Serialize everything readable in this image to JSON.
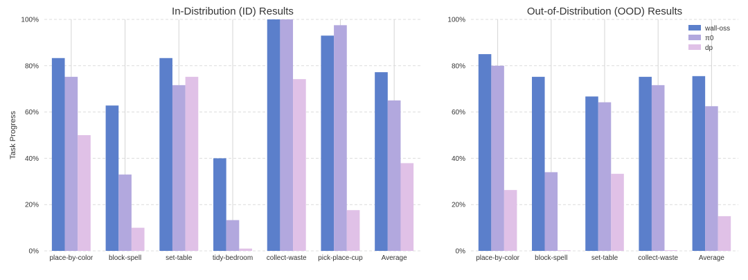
{
  "chart_data": [
    {
      "type": "bar",
      "title": "In-Distribution (ID) Results",
      "xlabel": "",
      "ylabel": "Task Progress",
      "ylim": [
        0,
        100
      ],
      "ytick_format": "percent",
      "yticks": [
        "0%",
        "20%",
        "40%",
        "60%",
        "80%",
        "100%"
      ],
      "grid": true,
      "categories": [
        "place-by-color",
        "block-spell",
        "set-table",
        "tidy-bedroom",
        "collect-waste",
        "pick-place-cup",
        "Average"
      ],
      "series": [
        {
          "name": "wall-oss",
          "color": "#5b7fcb",
          "values": [
            83.3,
            62.8,
            83.3,
            40.0,
            100.0,
            93.0,
            77.2
          ]
        },
        {
          "name": "π0",
          "color": "#b2a8de",
          "values": [
            75.2,
            33.0,
            71.6,
            13.3,
            100.0,
            97.5,
            65.0
          ]
        },
        {
          "name": "dp",
          "color": "#e0c1e7",
          "values": [
            50.0,
            10.0,
            75.2,
            1.0,
            74.2,
            17.6,
            37.9
          ]
        }
      ]
    },
    {
      "type": "bar",
      "title": "Out-of-Distribution (OOD) Results",
      "xlabel": "",
      "ylabel": "",
      "ylim": [
        0,
        100
      ],
      "ytick_format": "percent",
      "yticks": [
        "0%",
        "20%",
        "40%",
        "60%",
        "80%",
        "100%"
      ],
      "grid": true,
      "legend": "top-right",
      "categories": [
        "place-by-color",
        "block-spell",
        "set-table",
        "collect-waste",
        "Average"
      ],
      "series": [
        {
          "name": "wall-oss",
          "color": "#5b7fcb",
          "values": [
            85.0,
            75.2,
            66.7,
            75.2,
            75.5
          ]
        },
        {
          "name": "π0",
          "color": "#b2a8de",
          "values": [
            80.0,
            34.0,
            64.2,
            71.6,
            62.5
          ]
        },
        {
          "name": "dp",
          "color": "#e0c1e7",
          "values": [
            26.3,
            0.3,
            33.3,
            0.3,
            15.0
          ]
        }
      ]
    }
  ]
}
